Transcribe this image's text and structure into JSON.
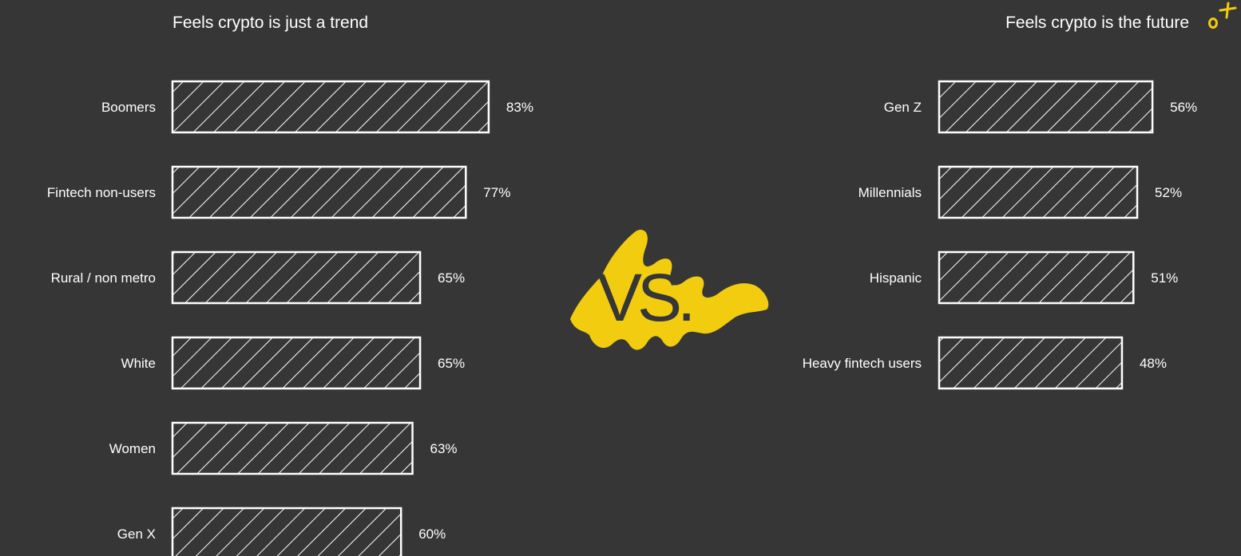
{
  "colors": {
    "background": "#363636",
    "bar_stroke": "#ffffff",
    "accent": "#f2cc0f",
    "text": "#ffffff"
  },
  "vs_label": "VS.",
  "icons": [
    "sparkle-icon"
  ],
  "chart_data": [
    {
      "type": "bar",
      "orientation": "horizontal",
      "title": "Feels crypto is just a trend",
      "categories": [
        "Boomers",
        "Fintech non-users",
        "Rural / non metro",
        "White",
        "Women",
        "Gen X"
      ],
      "values": [
        83,
        77,
        65,
        65,
        63,
        60
      ],
      "value_labels": [
        "83%",
        "77%",
        "65%",
        "65%",
        "63%",
        "60%"
      ],
      "unit": "%",
      "fill": "hatched"
    },
    {
      "type": "bar",
      "orientation": "horizontal",
      "title": "Feels crypto is the future",
      "categories": [
        "Gen Z",
        "Millennials",
        "Hispanic",
        "Heavy fintech users"
      ],
      "values": [
        56,
        52,
        51,
        48
      ],
      "value_labels": [
        "56%",
        "52%",
        "51%",
        "48%"
      ],
      "unit": "%",
      "fill": "hatched"
    }
  ]
}
